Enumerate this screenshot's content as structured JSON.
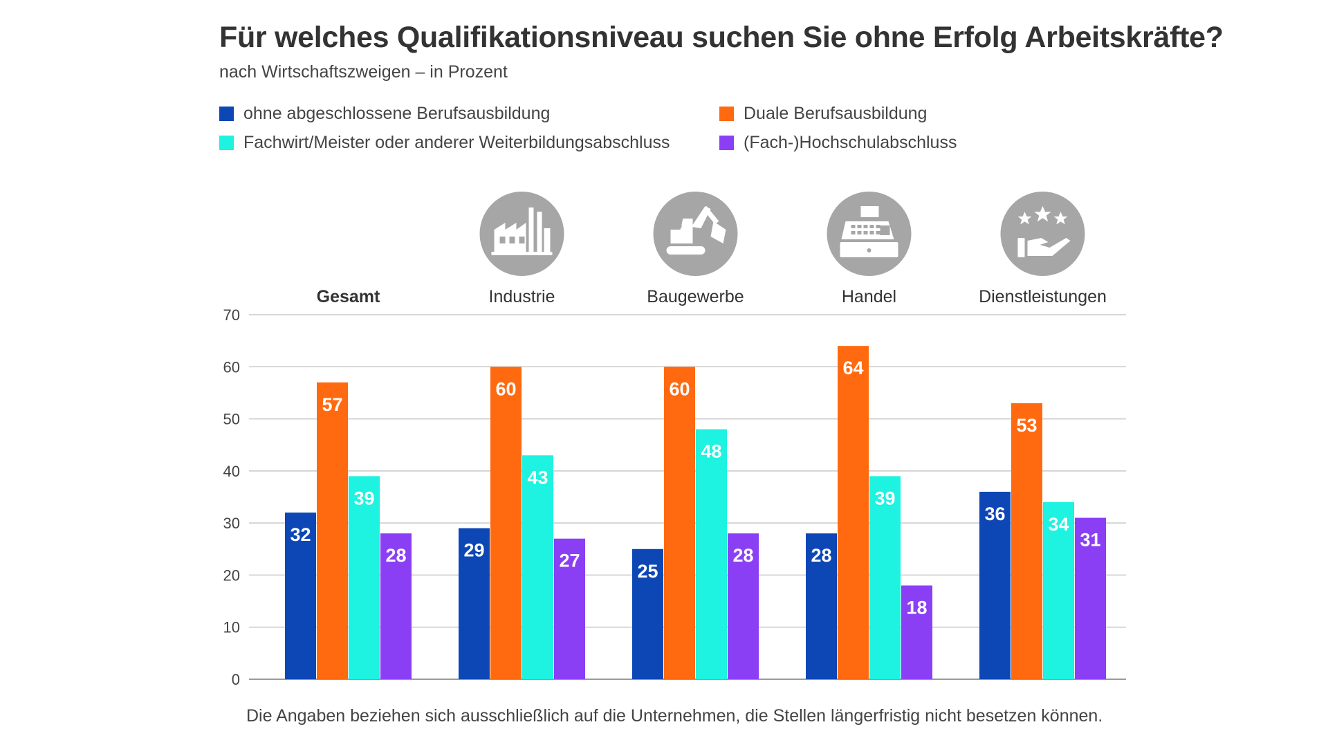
{
  "chart_data": {
    "type": "bar",
    "title": "Für welches Qualifikationsniveau suchen Sie ohne Erfolg Arbeitskräfte?",
    "subtitle": "nach Wirtschaftszweigen – in Prozent",
    "categories": [
      "Gesamt",
      "Industrie",
      "Baugewerbe",
      "Handel",
      "Dienstleistungen"
    ],
    "category_icons": [
      "",
      "factory-icon",
      "excavator-icon",
      "cash-register-icon",
      "service-stars-hand-icon"
    ],
    "series": [
      {
        "name": "ohne abgeschlossene Berufsausbildung",
        "color": "#0d47b5",
        "values": [
          32,
          29,
          25,
          28,
          36
        ]
      },
      {
        "name": "Duale Berufsausbildung",
        "color": "#ff6a10",
        "values": [
          57,
          60,
          60,
          64,
          53
        ]
      },
      {
        "name": "Fachwirt/Meister oder anderer Weiterbildungsabschluss",
        "color": "#1ef2e0",
        "values": [
          39,
          43,
          48,
          39,
          34
        ]
      },
      {
        "name": "(Fach-)Hochschulabschluss",
        "color": "#8b3ff5",
        "values": [
          28,
          27,
          28,
          18,
          31
        ]
      }
    ],
    "ylim": [
      0,
      70
    ],
    "yticks": [
      0,
      10,
      20,
      30,
      40,
      50,
      60,
      70
    ],
    "xlabel": "",
    "ylabel": "",
    "grid": true,
    "legend_position": "top-left",
    "footnote": "Die Angaben beziehen sich ausschließlich auf die Unternehmen, die Stellen längerfristig nicht besetzen können."
  },
  "colors": {
    "icon_circle": "#a6a6a6",
    "grid": "#c8c8c8",
    "text": "#333333"
  }
}
